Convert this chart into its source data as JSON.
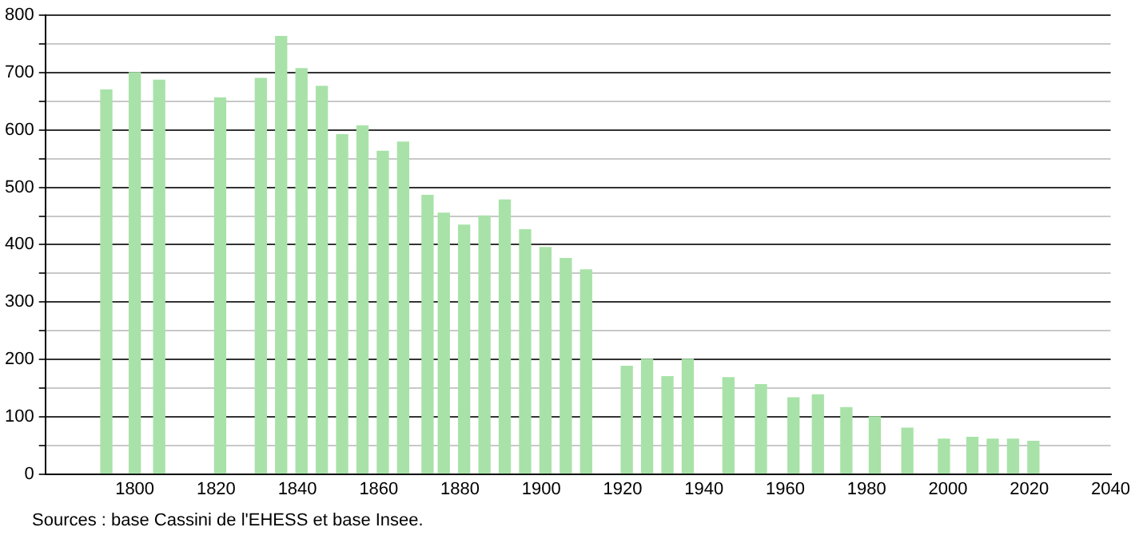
{
  "chart_data": {
    "type": "bar",
    "x": [
      1793,
      1800,
      1806,
      1821,
      1831,
      1836,
      1841,
      1846,
      1851,
      1856,
      1861,
      1866,
      1872,
      1876,
      1881,
      1886,
      1891,
      1896,
      1901,
      1906,
      1911,
      1921,
      1926,
      1931,
      1936,
      1946,
      1954,
      1962,
      1968,
      1975,
      1982,
      1990,
      1999,
      2006,
      2011,
      2016,
      2021
    ],
    "values": [
      670,
      700,
      687,
      656,
      690,
      763,
      707,
      676,
      592,
      607,
      563,
      579,
      486,
      455,
      434,
      450,
      478,
      426,
      395,
      376,
      356,
      188,
      200,
      170,
      200,
      168,
      156,
      133,
      138,
      116,
      100,
      80,
      61,
      64,
      61,
      61,
      57
    ],
    "color": "#a8e2a8",
    "xlim": [
      1778,
      2040
    ],
    "xticks": [
      1800,
      1820,
      1840,
      1860,
      1880,
      1900,
      1920,
      1940,
      1960,
      1980,
      2000,
      2020,
      2040
    ],
    "ylim": [
      0,
      800
    ],
    "yticks": [
      0,
      {
        "value": 50,
        "label": null
      },
      100,
      {
        "value": 150,
        "label": null
      },
      200,
      {
        "value": 250,
        "label": null
      },
      300,
      {
        "value": 350,
        "label": null
      },
      400,
      {
        "value": 450,
        "label": null
      },
      500,
      {
        "value": 550,
        "label": null
      },
      600,
      {
        "value": 650,
        "label": null
      },
      700,
      {
        "value": 750,
        "label": null
      },
      800
    ],
    "grid": "y",
    "legend": false,
    "annotations": [
      "Sources : base Cassini de l'EHESS et base Insee."
    ]
  }
}
